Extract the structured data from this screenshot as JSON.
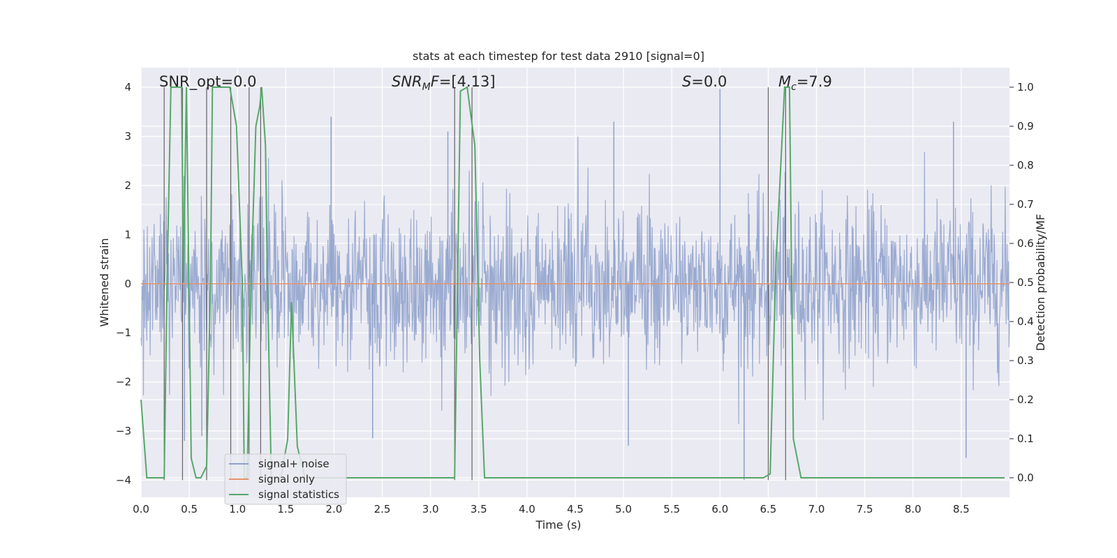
{
  "chart_data": {
    "type": "line",
    "title": "stats at each timestep for test data 2910 [signal=0]",
    "xlabel": "Time (s)",
    "ylabel": "Whitened strain",
    "y2label": "Detection probability/MF",
    "xlim": [
      0.0,
      9.0
    ],
    "ylim": [
      -4.35,
      4.4
    ],
    "y2lim": [
      -0.05,
      1.05
    ],
    "xticks": [
      0.0,
      0.5,
      1.0,
      1.5,
      2.0,
      2.5,
      3.0,
      3.5,
      4.0,
      4.5,
      5.0,
      5.5,
      6.0,
      6.5,
      7.0,
      7.5,
      8.0,
      8.5
    ],
    "xtick_labels": [
      "0.0",
      "0.5",
      "1.0",
      "1.5",
      "2.0",
      "2.5",
      "3.0",
      "3.5",
      "4.0",
      "4.5",
      "5.0",
      "5.5",
      "6.0",
      "6.5",
      "7.0",
      "7.5",
      "8.0",
      "8.5"
    ],
    "yticks": [
      -4,
      -3,
      -2,
      -1,
      0,
      1,
      2,
      3,
      4
    ],
    "ytick_labels": [
      "−4",
      "−3",
      "−2",
      "−1",
      "0",
      "1",
      "2",
      "3",
      "4"
    ],
    "y2ticks": [
      0.0,
      0.1,
      0.2,
      0.3,
      0.4,
      0.5,
      0.6,
      0.7,
      0.8,
      0.9,
      1.0
    ],
    "y2tick_labels": [
      "0.0",
      "0.1",
      "0.2",
      "0.3",
      "0.4",
      "0.5",
      "0.6",
      "0.7",
      "0.8",
      "0.9",
      "1.0"
    ],
    "annotations": {
      "snr_opt": "SNR_opt=0.0",
      "snr_mf_sym": "SNR",
      "snr_mf_sub": "M",
      "snr_mf_sym2": "F",
      "snr_mf_val": "=[4.13]",
      "s_sym": "S",
      "s_val": "=0.0",
      "mc_sym": "M",
      "mc_sub": "c",
      "mc_val": "=7.9"
    },
    "legend": {
      "position": "lower-left",
      "entries": [
        "signal+ noise",
        "signal only",
        "signal statistics"
      ]
    },
    "series": [
      {
        "name": "signal+ noise",
        "color": "#8da0cb",
        "description": "whitened strain noise, roughly uniform amplitude across 0-9 s",
        "sigma": 0.82,
        "extreme_points": [
          {
            "x": 0.45,
            "y": -3.2
          },
          {
            "x": 0.63,
            "y": -3.1
          },
          {
            "x": 1.97,
            "y": 3.4
          },
          {
            "x": 2.4,
            "y": -3.15
          },
          {
            "x": 3.18,
            "y": 3.1
          },
          {
            "x": 4.9,
            "y": 3.3
          },
          {
            "x": 5.05,
            "y": -3.3
          },
          {
            "x": 6.0,
            "y": 3.97
          },
          {
            "x": 6.25,
            "y": -4.0
          },
          {
            "x": 8.42,
            "y": 3.3
          },
          {
            "x": 8.55,
            "y": -3.55
          }
        ]
      },
      {
        "name": "signal only",
        "color": "#e5936b",
        "x": [
          0.0,
          9.0
        ],
        "y": [
          0.0,
          0.0
        ]
      },
      {
        "name": "signal statistics",
        "color": "#55a868",
        "axis": "right",
        "x": [
          0.0,
          0.06,
          0.18,
          0.24,
          0.27,
          0.31,
          0.42,
          0.44,
          0.47,
          0.52,
          0.57,
          0.62,
          0.68,
          0.72,
          0.74,
          0.92,
          0.99,
          1.05,
          1.07,
          1.1,
          1.14,
          1.19,
          1.23,
          1.25,
          1.29,
          1.31,
          1.35,
          1.45,
          1.52,
          1.56,
          1.62,
          1.7,
          2.0,
          3.0,
          3.25,
          3.28,
          3.31,
          3.38,
          3.46,
          3.51,
          3.56,
          3.62,
          4.0,
          5.0,
          5.9,
          6.3,
          6.45,
          6.52,
          6.58,
          6.67,
          6.72,
          6.76,
          6.84,
          7.0,
          8.0,
          8.95
        ],
        "y": [
          0.2,
          0.0,
          0.0,
          0.0,
          0.5,
          1.0,
          1.0,
          0.5,
          1.0,
          0.05,
          0.0,
          0.0,
          0.03,
          0.5,
          1.0,
          1.0,
          0.9,
          0.5,
          0.0,
          0.0,
          0.5,
          0.9,
          0.95,
          1.0,
          0.85,
          0.5,
          0.0,
          0.0,
          0.1,
          0.45,
          0.08,
          0.0,
          0.0,
          0.0,
          0.0,
          0.5,
          0.99,
          1.0,
          0.85,
          0.3,
          0.0,
          0.0,
          0.0,
          0.0,
          0.0,
          0.0,
          0.0,
          0.01,
          0.55,
          1.0,
          1.0,
          0.1,
          0.0,
          0.0,
          0.0,
          0.0
        ]
      }
    ],
    "vertical_markers_x": [
      0.24,
      0.43,
      0.68,
      0.93,
      1.12,
      1.24,
      3.25,
      3.43,
      6.5,
      6.68
    ]
  }
}
